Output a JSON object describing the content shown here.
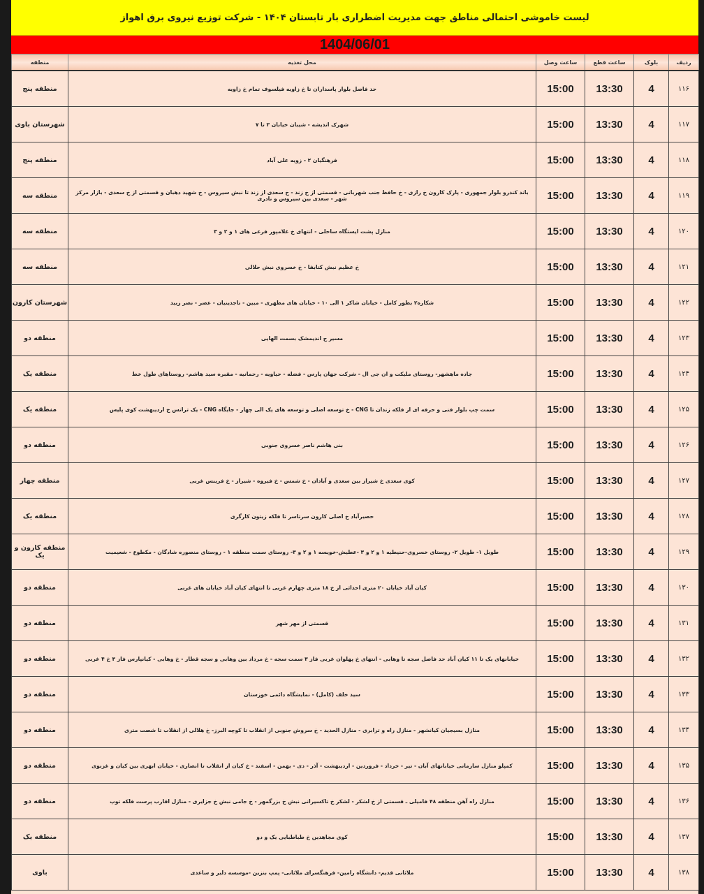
{
  "header": {
    "title": "لیست خاموشی احتمالی مناطق جهت مدیریت اضطراری بار تابستان ۱۴۰۴ - شرکت توزیع نیروی برق اهواز",
    "date": "1404/06/01"
  },
  "columns": {
    "row": "ردیف",
    "block": "بلوک",
    "cut": "ساعت قطع",
    "connect": "ساعت وصل",
    "location": "محل تغذیه",
    "region": "منطقه"
  },
  "colors": {
    "title_bg": "#ffff00",
    "date_bg": "#ff0000",
    "table_bg": "#fde4d6"
  },
  "rows": [
    {
      "n": "۱۱۶",
      "block": "4",
      "cut": "13:30",
      "connect": "15:00",
      "location": "حد فاصل بلوار پاسداران تا خ زاویه فیلسوف تمام خ زاویه",
      "region": "منطقه پنج"
    },
    {
      "n": "۱۱۷",
      "block": "4",
      "cut": "13:30",
      "connect": "15:00",
      "location": "شهرک اندیشه - شیبان خیابان ۳ تا ۷",
      "region": "شهرستان باوی"
    },
    {
      "n": "۱۱۸",
      "block": "4",
      "cut": "13:30",
      "connect": "15:00",
      "location": "فرهنگیان ۲ - زویه علی آباد",
      "region": "منطقه پنج"
    },
    {
      "n": "۱۱۹",
      "block": "4",
      "cut": "13:30",
      "connect": "15:00",
      "location": "باند کندرو بلوار جمهوری - پارک کارون خ رازی - خ حافظ جنب شهربانی - قسمتی از خ زند - خ سعدی از زند تا نبش سیروس - خ شهید دهبان و قسمتی از خ سعدی - بازار مرکز شهر - سعدی بین سیروس و نادری",
      "region": "منطقه سه"
    },
    {
      "n": "۱۲۰",
      "block": "4",
      "cut": "13:30",
      "connect": "15:00",
      "location": "منازل پشت ایستگاه ساحلی - انتهای خ غلامپور فرعی های ۱ و ۲ و ۳",
      "region": "منطقه سه"
    },
    {
      "n": "۱۲۱",
      "block": "4",
      "cut": "13:30",
      "connect": "15:00",
      "location": "خ عظیم نبش کتابفا - خ خسروی نبش حلالی",
      "region": "منطقه سه"
    },
    {
      "n": "۱۲۲",
      "block": "4",
      "cut": "13:30",
      "connect": "15:00",
      "location": "شکاره۲ بطور کامل - خیابان شاکر ۱ الی ۱۰ - خیابان های مطهری - مبین - تاجدینیان - عصر - نصر زبید",
      "region": "شهرستان کارون"
    },
    {
      "n": "۱۲۳",
      "block": "4",
      "cut": "13:30",
      "connect": "15:00",
      "location": "مسیر ج اندیمشک بسمت الهایی",
      "region": "منطقه دو"
    },
    {
      "n": "۱۲۴",
      "block": "4",
      "cut": "13:30",
      "connect": "15:00",
      "location": "جاده ماهشهر- روستای ملیکت و ان جی ال - شرکت جهان پارس - فضله - حیاویه - رحمانیه - مقبره سید هاشم- روستاهای طول خط",
      "region": "منطقه یک"
    },
    {
      "n": "۱۲۵",
      "block": "4",
      "cut": "13:30",
      "connect": "15:00",
      "location": "سمت چپ بلوار فنی و حرفه ای از فلکه زندان تا CNG - خ توسعه اصلی و توسعه های یک الی چهار - جایگاه CNG - یک ترانس خ اردیبهشت کوی پلیس",
      "region": "منطقه یک"
    },
    {
      "n": "۱۲۶",
      "block": "4",
      "cut": "13:30",
      "connect": "15:00",
      "location": "بنی هاشم ناصر خسروی جنوبی",
      "region": "منطقه دو"
    },
    {
      "n": "۱۲۷",
      "block": "4",
      "cut": "13:30",
      "connect": "15:00",
      "location": "کوی سعدی خ شیراز بین سعدی و آبادان - خ شمس - خ فیروه - شیراز - خ فرینس غربی",
      "region": "منطقه چهار"
    },
    {
      "n": "۱۲۸",
      "block": "4",
      "cut": "13:30",
      "connect": "15:00",
      "location": "حصیرآباد خ اصلی کارون سرتاسر تا فلکه زیتون کارگری",
      "region": "منطقه یک"
    },
    {
      "n": "۱۲۹",
      "block": "4",
      "cut": "13:30",
      "connect": "15:00",
      "location": "طویل ۱- طویل ۲- روستای خسروی-حنیطیه ۱ و ۲ و ۳ -عطیش-خویسه ۱ و ۲ و ۳- روستای سمت منطقه ۱ - روستای منصوره شادگان - مکطوع - شعیمیت",
      "region": "منطقه کارون و یک"
    },
    {
      "n": "۱۳۰",
      "block": "4",
      "cut": "13:30",
      "connect": "15:00",
      "location": "کیان آباد خیابان ۲۰ متری احداثی از خ ۱۸ متری چهارم غربی تا انتهای کیان آباد خیابان های غربی",
      "region": "منطقه دو"
    },
    {
      "n": "۱۳۱",
      "block": "4",
      "cut": "13:30",
      "connect": "15:00",
      "location": "قسمتی از مهر شهر",
      "region": "منطقه دو"
    },
    {
      "n": "۱۳۲",
      "block": "4",
      "cut": "13:30",
      "connect": "15:00",
      "location": "خیابانهای یک تا ۱۱ کیان آباد حد فاصل سجه تا وهابی - انتهای خ پهلوان غربی فاز ۳ سمت سجه - خ مرداد بین وهابی و سجه قطار - خ وهابی - کیانپارس فاز ۳ خ ۴ غربی",
      "region": "منطقه دو"
    },
    {
      "n": "۱۳۳",
      "block": "4",
      "cut": "13:30",
      "connect": "15:00",
      "location": "سید خلف (کامل) - نمایشگاه دائمی خوزستان",
      "region": "منطقه دو"
    },
    {
      "n": "۱۳۴",
      "block": "4",
      "cut": "13:30",
      "connect": "15:00",
      "location": "منازل بسیجیان کیانشهر - منازل راه و ترابری - منازل الحدید - خ سروش جنوبی از انقلاب تا کوچه البرز- خ هلالی از انقلاب تا شصت متری",
      "region": "منطقه دو"
    },
    {
      "n": "۱۳۵",
      "block": "4",
      "cut": "13:30",
      "connect": "15:00",
      "location": "کمپلو منازل سازمانی خیابانهای آبان - تیر - خرداد - فروردین - اردیبهشت - آذر - دی - بهمن - اسفند - خ کیان از انقلاب تا انصاری - خیابان ابهری بین کیان و غزنوی",
      "region": "منطقه دو"
    },
    {
      "n": "۱۳۶",
      "block": "4",
      "cut": "13:30",
      "connect": "15:00",
      "location": "منازل راه آهن منطقه ۴۸ فامیلی ـ قسمتی از خ لشکر - لشکر خ تاکسیرانی نبش خ بزرگمهر - خ جامی نبش خ جزایری - منازل اقارب پرست فلکه توپ",
      "region": "منطقه دو"
    },
    {
      "n": "۱۳۷",
      "block": "4",
      "cut": "13:30",
      "connect": "15:00",
      "location": "کوی مجاهدین خ طباطبایی یک و دو",
      "region": "منطقه یک"
    },
    {
      "n": "۱۳۸",
      "block": "4",
      "cut": "13:30",
      "connect": "15:00",
      "location": "ملاثانی قدیم- دانشگاه رامین- فرهنگسرای ملاثانی- پمپ بنزین -موسسه دلبر و ساعدی",
      "region": "باوی"
    }
  ]
}
